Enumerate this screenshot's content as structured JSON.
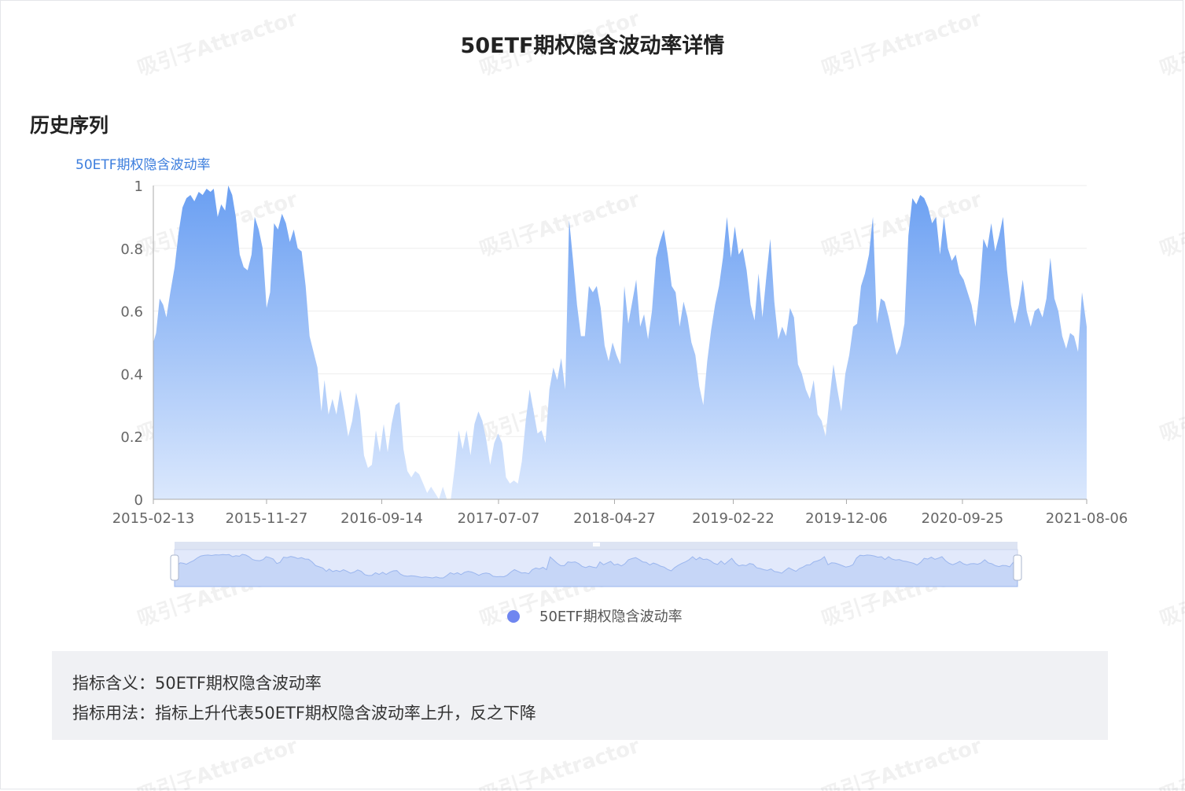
{
  "title": "50ETF期权隐含波动率详情",
  "section_title": "历史序列",
  "watermark_text": "吸引子Attractor",
  "info": {
    "meaning_label": "指标含义：",
    "meaning_value": "50ETF期权隐含波动率",
    "usage_label": "指标用法：",
    "usage_value": "指标上升代表50ETF期权隐含波动率上升，反之下降"
  },
  "colors": {
    "area_top": "#6a9ff2",
    "area_bottom": "#dbe8fd",
    "legend_marker": "#6f86f0",
    "series_name": "#3b7ddd",
    "grid": "#eeeeee",
    "axis": "#aaaaaa",
    "tick_text": "#666666"
  },
  "chart_data": {
    "type": "area",
    "series_name_label": "50ETF期权隐含波动率",
    "xlabel": "",
    "ylabel": "",
    "ylim": [
      0,
      1
    ],
    "yticks": [
      0,
      0.2,
      0.4,
      0.6,
      0.8,
      1
    ],
    "ytick_labels": [
      "0",
      "0.2",
      "0.4",
      "0.6",
      "0.8",
      "1"
    ],
    "xticks": [
      "2015-02-13",
      "2015-11-27",
      "2016-09-14",
      "2017-07-07",
      "2018-04-27",
      "2019-02-22",
      "2019-12-06",
      "2020-09-25",
      "2021-08-06"
    ],
    "grid": true,
    "legend": "bottom",
    "has_datazoom_slider": true,
    "series": [
      {
        "name": "50ETF期权隐含波动率",
        "points": [
          [
            "2015-02-13",
            0.5
          ],
          [
            "2015-02-20",
            0.53
          ],
          [
            "2015-03-01",
            0.64
          ],
          [
            "2015-03-10",
            0.62
          ],
          [
            "2015-03-18",
            0.58
          ],
          [
            "2015-03-28",
            0.66
          ],
          [
            "2015-04-08",
            0.74
          ],
          [
            "2015-04-18",
            0.85
          ],
          [
            "2015-04-28",
            0.93
          ],
          [
            "2015-05-08",
            0.96
          ],
          [
            "2015-05-18",
            0.97
          ],
          [
            "2015-05-28",
            0.95
          ],
          [
            "2015-06-08",
            0.98
          ],
          [
            "2015-06-18",
            0.97
          ],
          [
            "2015-06-28",
            0.99
          ],
          [
            "2015-07-08",
            0.98
          ],
          [
            "2015-07-16",
            0.99
          ],
          [
            "2015-07-26",
            0.9
          ],
          [
            "2015-08-04",
            0.94
          ],
          [
            "2015-08-14",
            0.92
          ],
          [
            "2015-08-22",
            1.0
          ],
          [
            "2015-09-01",
            0.97
          ],
          [
            "2015-09-10",
            0.9
          ],
          [
            "2015-09-20",
            0.78
          ],
          [
            "2015-09-30",
            0.74
          ],
          [
            "2015-10-10",
            0.73
          ],
          [
            "2015-10-20",
            0.78
          ],
          [
            "2015-10-28",
            0.9
          ],
          [
            "2015-11-07",
            0.86
          ],
          [
            "2015-11-17",
            0.8
          ],
          [
            "2015-11-27",
            0.61
          ],
          [
            "2015-12-06",
            0.66
          ],
          [
            "2015-12-16",
            0.88
          ],
          [
            "2015-12-26",
            0.86
          ],
          [
            "2016-01-05",
            0.91
          ],
          [
            "2016-01-15",
            0.88
          ],
          [
            "2016-01-25",
            0.82
          ],
          [
            "2016-02-04",
            0.86
          ],
          [
            "2016-02-14",
            0.8
          ],
          [
            "2016-02-24",
            0.79
          ],
          [
            "2016-03-05",
            0.68
          ],
          [
            "2016-03-15",
            0.52
          ],
          [
            "2016-03-25",
            0.47
          ],
          [
            "2016-04-04",
            0.42
          ],
          [
            "2016-04-14",
            0.28
          ],
          [
            "2016-04-22",
            0.38
          ],
          [
            "2016-05-02",
            0.27
          ],
          [
            "2016-05-12",
            0.32
          ],
          [
            "2016-05-22",
            0.27
          ],
          [
            "2016-06-01",
            0.35
          ],
          [
            "2016-06-11",
            0.28
          ],
          [
            "2016-06-21",
            0.2
          ],
          [
            "2016-07-01",
            0.25
          ],
          [
            "2016-07-11",
            0.34
          ],
          [
            "2016-07-21",
            0.28
          ],
          [
            "2016-07-31",
            0.14
          ],
          [
            "2016-08-10",
            0.1
          ],
          [
            "2016-08-20",
            0.11
          ],
          [
            "2016-08-30",
            0.22
          ],
          [
            "2016-09-09",
            0.15
          ],
          [
            "2016-09-19",
            0.24
          ],
          [
            "2016-09-29",
            0.15
          ],
          [
            "2016-10-09",
            0.24
          ],
          [
            "2016-10-19",
            0.3
          ],
          [
            "2016-10-29",
            0.31
          ],
          [
            "2016-11-08",
            0.16
          ],
          [
            "2016-11-18",
            0.09
          ],
          [
            "2016-11-28",
            0.07
          ],
          [
            "2016-12-08",
            0.09
          ],
          [
            "2016-12-18",
            0.08
          ],
          [
            "2016-12-28",
            0.05
          ],
          [
            "2017-01-07",
            0.02
          ],
          [
            "2017-01-17",
            0.04
          ],
          [
            "2017-01-27",
            0.02
          ],
          [
            "2017-02-06",
            0.0
          ],
          [
            "2017-02-16",
            0.04
          ],
          [
            "2017-02-26",
            0.0
          ],
          [
            "2017-03-08",
            0.0
          ],
          [
            "2017-03-18",
            0.1
          ],
          [
            "2017-03-28",
            0.22
          ],
          [
            "2017-04-07",
            0.16
          ],
          [
            "2017-04-17",
            0.22
          ],
          [
            "2017-04-27",
            0.14
          ],
          [
            "2017-05-07",
            0.24
          ],
          [
            "2017-05-17",
            0.28
          ],
          [
            "2017-05-27",
            0.25
          ],
          [
            "2017-06-06",
            0.19
          ],
          [
            "2017-06-16",
            0.11
          ],
          [
            "2017-06-26",
            0.18
          ],
          [
            "2017-07-06",
            0.21
          ],
          [
            "2017-07-16",
            0.18
          ],
          [
            "2017-07-26",
            0.07
          ],
          [
            "2017-08-05",
            0.05
          ],
          [
            "2017-08-15",
            0.06
          ],
          [
            "2017-08-25",
            0.05
          ],
          [
            "2017-09-04",
            0.12
          ],
          [
            "2017-09-14",
            0.25
          ],
          [
            "2017-09-24",
            0.35
          ],
          [
            "2017-10-04",
            0.28
          ],
          [
            "2017-10-14",
            0.21
          ],
          [
            "2017-10-24",
            0.22
          ],
          [
            "2017-11-03",
            0.18
          ],
          [
            "2017-11-13",
            0.35
          ],
          [
            "2017-11-23",
            0.42
          ],
          [
            "2017-12-03",
            0.38
          ],
          [
            "2017-12-13",
            0.45
          ],
          [
            "2017-12-23",
            0.35
          ],
          [
            "2018-01-02",
            0.89
          ],
          [
            "2018-01-12",
            0.76
          ],
          [
            "2018-01-22",
            0.62
          ],
          [
            "2018-02-01",
            0.52
          ],
          [
            "2018-02-11",
            0.52
          ],
          [
            "2018-02-21",
            0.68
          ],
          [
            "2018-03-03",
            0.66
          ],
          [
            "2018-03-13",
            0.68
          ],
          [
            "2018-03-23",
            0.61
          ],
          [
            "2018-04-02",
            0.49
          ],
          [
            "2018-04-12",
            0.44
          ],
          [
            "2018-04-22",
            0.5
          ],
          [
            "2018-05-02",
            0.46
          ],
          [
            "2018-05-12",
            0.43
          ],
          [
            "2018-05-22",
            0.68
          ],
          [
            "2018-06-01",
            0.56
          ],
          [
            "2018-06-11",
            0.63
          ],
          [
            "2018-06-21",
            0.7
          ],
          [
            "2018-07-01",
            0.55
          ],
          [
            "2018-07-11",
            0.59
          ],
          [
            "2018-07-21",
            0.51
          ],
          [
            "2018-07-31",
            0.6
          ],
          [
            "2018-08-10",
            0.77
          ],
          [
            "2018-08-20",
            0.82
          ],
          [
            "2018-08-30",
            0.86
          ],
          [
            "2018-09-09",
            0.78
          ],
          [
            "2018-09-19",
            0.68
          ],
          [
            "2018-09-29",
            0.66
          ],
          [
            "2018-10-09",
            0.55
          ],
          [
            "2018-10-19",
            0.63
          ],
          [
            "2018-10-29",
            0.58
          ],
          [
            "2018-11-08",
            0.5
          ],
          [
            "2018-11-18",
            0.46
          ],
          [
            "2018-11-28",
            0.36
          ],
          [
            "2018-12-08",
            0.3
          ],
          [
            "2018-12-18",
            0.44
          ],
          [
            "2018-12-28",
            0.54
          ],
          [
            "2019-01-07",
            0.62
          ],
          [
            "2019-01-17",
            0.68
          ],
          [
            "2019-01-27",
            0.77
          ],
          [
            "2019-02-06",
            0.9
          ],
          [
            "2019-02-16",
            0.77
          ],
          [
            "2019-02-26",
            0.87
          ],
          [
            "2019-03-08",
            0.78
          ],
          [
            "2019-03-18",
            0.8
          ],
          [
            "2019-03-28",
            0.73
          ],
          [
            "2019-04-07",
            0.62
          ],
          [
            "2019-04-17",
            0.57
          ],
          [
            "2019-04-27",
            0.72
          ],
          [
            "2019-05-07",
            0.58
          ],
          [
            "2019-05-17",
            0.71
          ],
          [
            "2019-05-27",
            0.83
          ],
          [
            "2019-06-06",
            0.63
          ],
          [
            "2019-06-16",
            0.51
          ],
          [
            "2019-06-26",
            0.55
          ],
          [
            "2019-07-06",
            0.52
          ],
          [
            "2019-07-16",
            0.61
          ],
          [
            "2019-07-26",
            0.58
          ],
          [
            "2019-08-05",
            0.43
          ],
          [
            "2019-08-15",
            0.4
          ],
          [
            "2019-08-25",
            0.35
          ],
          [
            "2019-09-04",
            0.32
          ],
          [
            "2019-09-14",
            0.38
          ],
          [
            "2019-09-24",
            0.27
          ],
          [
            "2019-10-04",
            0.25
          ],
          [
            "2019-10-14",
            0.2
          ],
          [
            "2019-10-24",
            0.32
          ],
          [
            "2019-11-03",
            0.43
          ],
          [
            "2019-11-13",
            0.35
          ],
          [
            "2019-11-23",
            0.28
          ],
          [
            "2019-12-03",
            0.4
          ],
          [
            "2019-12-13",
            0.46
          ],
          [
            "2019-12-23",
            0.55
          ],
          [
            "2020-01-02",
            0.56
          ],
          [
            "2020-01-12",
            0.68
          ],
          [
            "2020-01-22",
            0.72
          ],
          [
            "2020-02-01",
            0.78
          ],
          [
            "2020-02-11",
            0.9
          ],
          [
            "2020-02-21",
            0.56
          ],
          [
            "2020-03-02",
            0.64
          ],
          [
            "2020-03-12",
            0.63
          ],
          [
            "2020-03-22",
            0.58
          ],
          [
            "2020-04-01",
            0.52
          ],
          [
            "2020-04-11",
            0.46
          ],
          [
            "2020-04-21",
            0.49
          ],
          [
            "2020-05-01",
            0.56
          ],
          [
            "2020-05-11",
            0.84
          ],
          [
            "2020-05-21",
            0.96
          ],
          [
            "2020-05-31",
            0.94
          ],
          [
            "2020-06-10",
            0.97
          ],
          [
            "2020-06-20",
            0.96
          ],
          [
            "2020-06-30",
            0.93
          ],
          [
            "2020-07-10",
            0.88
          ],
          [
            "2020-07-20",
            0.9
          ],
          [
            "2020-07-30",
            0.78
          ],
          [
            "2020-08-09",
            0.9
          ],
          [
            "2020-08-19",
            0.8
          ],
          [
            "2020-08-29",
            0.76
          ],
          [
            "2020-09-08",
            0.78
          ],
          [
            "2020-09-18",
            0.72
          ],
          [
            "2020-09-28",
            0.7
          ],
          [
            "2020-10-08",
            0.66
          ],
          [
            "2020-10-18",
            0.62
          ],
          [
            "2020-10-28",
            0.55
          ],
          [
            "2020-11-07",
            0.66
          ],
          [
            "2020-11-17",
            0.83
          ],
          [
            "2020-11-27",
            0.8
          ],
          [
            "2020-12-07",
            0.88
          ],
          [
            "2020-12-17",
            0.79
          ],
          [
            "2020-12-27",
            0.84
          ],
          [
            "2021-01-06",
            0.9
          ],
          [
            "2021-01-16",
            0.73
          ],
          [
            "2021-01-26",
            0.62
          ],
          [
            "2021-02-05",
            0.56
          ],
          [
            "2021-02-15",
            0.62
          ],
          [
            "2021-02-25",
            0.7
          ],
          [
            "2021-03-07",
            0.6
          ],
          [
            "2021-03-17",
            0.55
          ],
          [
            "2021-03-27",
            0.6
          ],
          [
            "2021-04-06",
            0.61
          ],
          [
            "2021-04-16",
            0.58
          ],
          [
            "2021-04-26",
            0.64
          ],
          [
            "2021-05-06",
            0.77
          ],
          [
            "2021-05-16",
            0.64
          ],
          [
            "2021-05-26",
            0.6
          ],
          [
            "2021-06-05",
            0.52
          ],
          [
            "2021-06-15",
            0.48
          ],
          [
            "2021-06-25",
            0.53
          ],
          [
            "2021-07-05",
            0.52
          ],
          [
            "2021-07-15",
            0.47
          ],
          [
            "2021-07-25",
            0.66
          ],
          [
            "2021-08-06",
            0.55
          ]
        ]
      }
    ]
  }
}
